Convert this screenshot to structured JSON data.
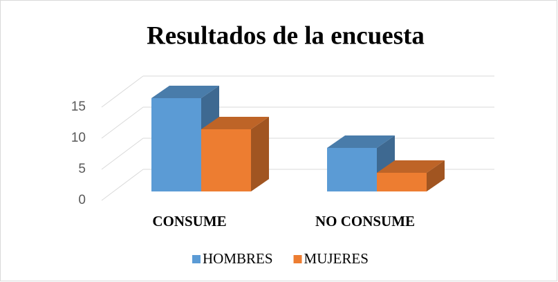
{
  "chart_data": {
    "type": "bar3d",
    "title": "Resultados de la encuesta",
    "categories": [
      "CONSUME",
      "NO CONSUME"
    ],
    "series": [
      {
        "name": "HOMBRES",
        "color": "#5b9bd5",
        "values": [
          15,
          7
        ]
      },
      {
        "name": "MUJERES",
        "color": "#ed7d31",
        "values": [
          10,
          3
        ]
      }
    ],
    "ylim": [
      0,
      15
    ],
    "yticks": [
      0,
      5,
      10,
      15
    ],
    "grid": true,
    "legend": "bottom"
  }
}
